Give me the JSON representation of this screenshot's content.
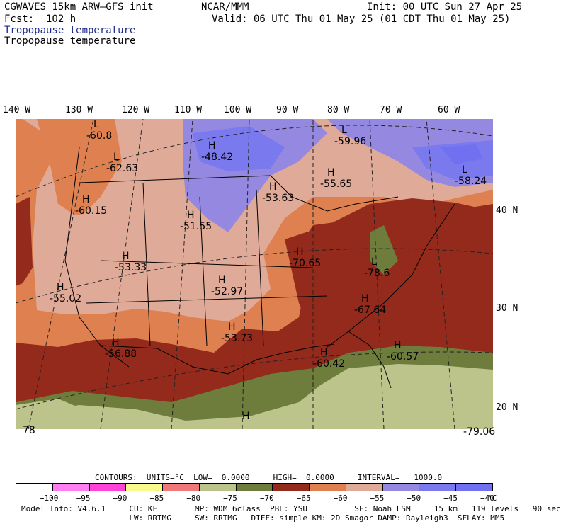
{
  "header": {
    "title": "CGWAVES 15km ARW–GFS init",
    "org": "NCAR/MMM",
    "init": "Init: 00 UTC Sun 27 Apr 25",
    "fcst": "Fcst:  102 h",
    "valid": "Valid: 06 UTC Thu 01 May 25 (01 CDT Thu 01 May 25)",
    "field_blue": "Tropopause temperature",
    "field_black": "Tropopause temperature"
  },
  "lon_labels": [
    "140 W",
    "130 W",
    "120 W",
    "110 W",
    "100 W",
    "90 W",
    "80 W",
    "70 W",
    "60 W"
  ],
  "lat_labels": [
    "40 N",
    "30 N",
    "20 N"
  ],
  "map_labels": [
    {
      "id": "l1",
      "kind": "L",
      "value": "-60.8"
    },
    {
      "id": "l2",
      "kind": "L",
      "value": "-62.63"
    },
    {
      "id": "h1",
      "kind": "H",
      "value": "-48.42"
    },
    {
      "id": "l3",
      "kind": "L",
      "value": "-59.96"
    },
    {
      "id": "h2",
      "kind": "H",
      "value": "-55.65"
    },
    {
      "id": "h3",
      "kind": "H",
      "value": "-53.63"
    },
    {
      "id": "h4",
      "kind": "L",
      "value": "-58.24"
    },
    {
      "id": "h5",
      "kind": "H",
      "value": "-60.15"
    },
    {
      "id": "h6",
      "kind": "H",
      "value": "-51.55"
    },
    {
      "id": "h7",
      "kind": "H",
      "value": "-53.33"
    },
    {
      "id": "h8",
      "kind": "H",
      "value": "-70.65"
    },
    {
      "id": "l4",
      "kind": "L",
      "value": "-78.6"
    },
    {
      "id": "h9",
      "kind": "H",
      "value": "-55.02"
    },
    {
      "id": "h10",
      "kind": "H",
      "value": "-52.97"
    },
    {
      "id": "h11",
      "kind": "H",
      "value": "-67.64"
    },
    {
      "id": "h12",
      "kind": "H",
      "value": "-53.73"
    },
    {
      "id": "h13",
      "kind": "H",
      "value": "-56.88"
    },
    {
      "id": "h14",
      "kind": "H",
      "value": "-60.57"
    },
    {
      "id": "h15",
      "kind": "H",
      "value": "-60.42"
    },
    {
      "id": "h16",
      "kind": "H",
      "value": ""
    },
    {
      "id": "b1",
      "kind": "",
      "value": "78"
    },
    {
      "id": "b2",
      "kind": "",
      "value": "-79.06"
    }
  ],
  "contours_line": "CONTOURS:  UNITS=°C  LOW=  0.0000     HIGH=  0.0000     INTERVAL=   1000.0",
  "colorbar": {
    "colors": [
      "#ffffff",
      "#ff7ff2",
      "#ff42d8",
      "#fafa8c",
      "#f07878",
      "#bcc48c",
      "#6e7c3c",
      "#942a1c",
      "#de8050",
      "#e0aa98",
      "#9488e0",
      "#7a7aee",
      "#7070f0"
    ],
    "labels": [
      "−100",
      "−95",
      "−90",
      "−85",
      "−80",
      "−75",
      "−70",
      "−65",
      "−60",
      "−55",
      "−50",
      "−45",
      "−40"
    ],
    "unit": "°C"
  },
  "footer": {
    "line1": "Model Info: V4.6.1     CU: KF        MP: WDM 6class  PBL: YSU          SF: Noah LSM     15 km   119 levels   90 sec",
    "line2": "                       LW: RRTMG     SW: RRTMG   DIFF: simple KM: 2D Smagor DAMP: Rayleigh3  SFLAY: MM5"
  }
}
